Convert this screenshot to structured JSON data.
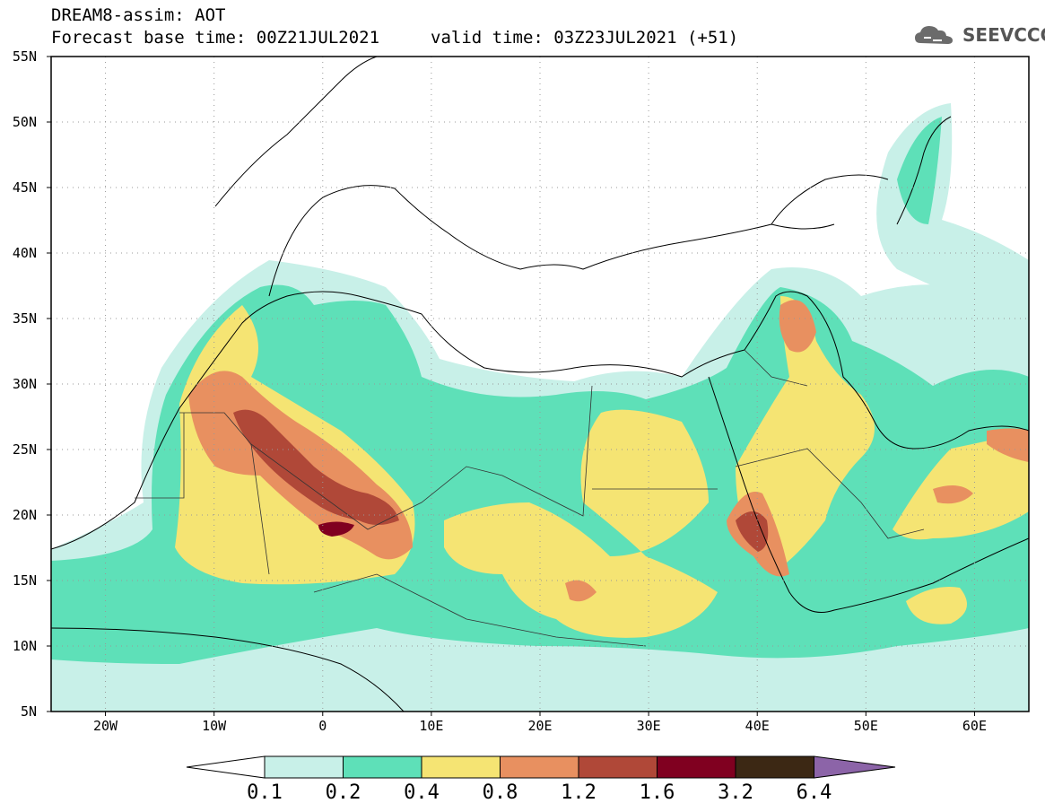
{
  "title": {
    "line1": "DREAM8-assim: AOT",
    "line2": "Forecast base time: 00Z21JUL2021",
    "valid": "valid time: 03Z23JUL2021 (+51)"
  },
  "logo": {
    "text": "SEEVCCC",
    "icon": "cloud-icon"
  },
  "map": {
    "lat_labels": [
      "55N",
      "50N",
      "45N",
      "40N",
      "35N",
      "30N",
      "25N",
      "20N",
      "15N",
      "10N",
      "5N"
    ],
    "lon_labels": [
      "20W",
      "10W",
      "0",
      "10E",
      "20E",
      "30E",
      "40E",
      "50E",
      "60E"
    ],
    "lat_range": [
      5,
      55
    ],
    "lon_range": [
      -25,
      65
    ],
    "gridlines": "dotted"
  },
  "colorbar": {
    "labels": [
      "0.1",
      "0.2",
      "0.4",
      "0.8",
      "1.2",
      "1.6",
      "3.2",
      "6.4"
    ],
    "colors": [
      "#c8f0e8",
      "#5ee0b8",
      "#f5e473",
      "#e89060",
      "#b04838",
      "#800020",
      "#3c2814",
      "#8c64a8"
    ]
  }
}
